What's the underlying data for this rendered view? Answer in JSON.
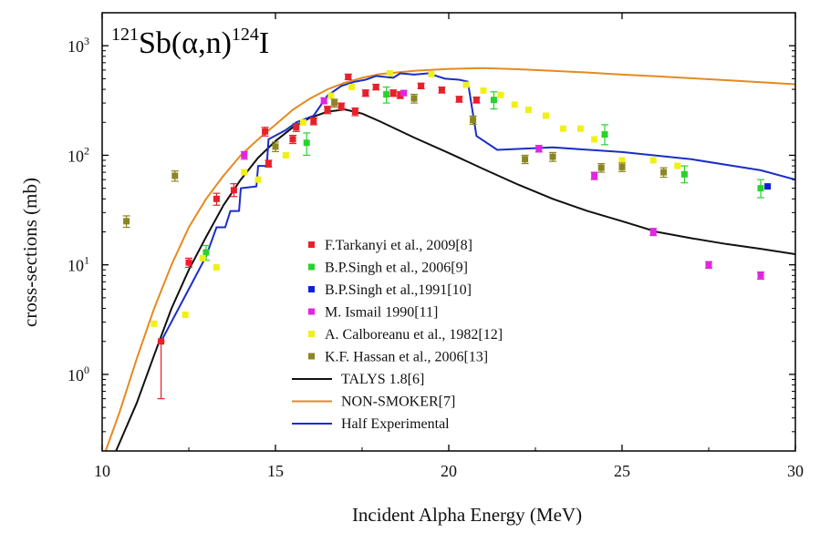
{
  "chart_data": {
    "type": "scatter",
    "title": {
      "reaction_prefix_mass": "121",
      "reaction_target": "Sb(",
      "reaction_alpha": "α",
      "reaction_middle": ",n)",
      "reaction_product_mass": "124",
      "reaction_product": "I"
    },
    "xlabel": "Incident Alpha Energy (MeV)",
    "ylabel": "cross-sections (mb)",
    "xlim": [
      10,
      30
    ],
    "ylim": [
      0.2,
      2000
    ],
    "y_scale": "log",
    "x_ticks": [
      10,
      15,
      20,
      25,
      30
    ],
    "x_tick_labels": [
      "10",
      "15",
      "20",
      "25",
      "30"
    ],
    "y_ticks": [
      {
        "value": 1,
        "base": "10",
        "exp": "0"
      },
      {
        "value": 10,
        "base": "10",
        "exp": "1"
      },
      {
        "value": 100,
        "base": "10",
        "exp": "2"
      },
      {
        "value": 1000,
        "base": "10",
        "exp": "3"
      }
    ],
    "legend_position": "center",
    "series": [
      {
        "name": "F.Tarkanyi et al., 2009[8]",
        "kind": "points",
        "color": "#e8202a",
        "marker": "square",
        "points": [
          {
            "x": 11.7,
            "y": 2.0,
            "lo": 0.6,
            "hi": 2.0
          },
          {
            "x": 12.5,
            "y": 10.5,
            "lo": 9.5,
            "hi": 11.5
          },
          {
            "x": 13.3,
            "y": 40,
            "lo": 35,
            "hi": 45
          },
          {
            "x": 13.8,
            "y": 48,
            "lo": 42,
            "hi": 55
          },
          {
            "x": 14.7,
            "y": 165,
            "lo": 150,
            "hi": 180
          },
          {
            "x": 14.8,
            "y": 84,
            "lo": 78,
            "hi": 90
          },
          {
            "x": 15.5,
            "y": 140,
            "lo": 128,
            "hi": 152
          },
          {
            "x": 15.6,
            "y": 180,
            "lo": 165,
            "hi": 195
          },
          {
            "x": 16.1,
            "y": 205,
            "lo": 190,
            "hi": 220
          },
          {
            "x": 16.5,
            "y": 260,
            "lo": 240,
            "hi": 280
          },
          {
            "x": 16.9,
            "y": 280,
            "lo": 260,
            "hi": 300
          },
          {
            "x": 17.1,
            "y": 520,
            "lo": 490,
            "hi": 550
          },
          {
            "x": 17.3,
            "y": 250,
            "lo": 230,
            "hi": 270
          },
          {
            "x": 17.6,
            "y": 370,
            "lo": 345,
            "hi": 395
          },
          {
            "x": 17.9,
            "y": 420,
            "lo": 395,
            "hi": 445
          },
          {
            "x": 18.4,
            "y": 370,
            "lo": 345,
            "hi": 395
          },
          {
            "x": 18.6,
            "y": 355,
            "lo": 330,
            "hi": 380
          },
          {
            "x": 19.2,
            "y": 430,
            "lo": 405,
            "hi": 455
          },
          {
            "x": 19.8,
            "y": 395,
            "lo": 370,
            "hi": 420
          },
          {
            "x": 20.3,
            "y": 325,
            "lo": 305,
            "hi": 345
          },
          {
            "x": 20.8,
            "y": 320,
            "lo": 300,
            "hi": 340
          }
        ]
      },
      {
        "name": "B.P.Singh et al., 2006[9]",
        "kind": "points",
        "color": "#2ad12e",
        "marker": "square",
        "points": [
          {
            "x": 13.0,
            "y": 13,
            "lo": 11,
            "hi": 15
          },
          {
            "x": 15.9,
            "y": 130,
            "lo": 100,
            "hi": 160
          },
          {
            "x": 18.2,
            "y": 360,
            "lo": 300,
            "hi": 420
          },
          {
            "x": 21.3,
            "y": 320,
            "lo": 265,
            "hi": 380
          },
          {
            "x": 24.5,
            "y": 155,
            "lo": 125,
            "hi": 190
          },
          {
            "x": 26.8,
            "y": 67,
            "lo": 56,
            "hi": 80
          },
          {
            "x": 29.0,
            "y": 50,
            "lo": 41,
            "hi": 60
          }
        ]
      },
      {
        "name": "B.P.Singh et al.,1991[10]",
        "kind": "points",
        "color": "#1020d8",
        "marker": "square",
        "points": [
          {
            "x": 29.2,
            "y": 52
          }
        ]
      },
      {
        "name": "M. Ismail 1990[11]",
        "kind": "points",
        "color": "#e026e0",
        "marker": "square",
        "points": [
          {
            "x": 14.1,
            "y": 100,
            "lo": 92,
            "hi": 108
          },
          {
            "x": 16.4,
            "y": 315,
            "lo": 295,
            "hi": 335
          },
          {
            "x": 18.7,
            "y": 370,
            "lo": 350,
            "hi": 390
          },
          {
            "x": 22.6,
            "y": 115,
            "lo": 107,
            "hi": 123
          },
          {
            "x": 24.2,
            "y": 65,
            "lo": 60,
            "hi": 70
          },
          {
            "x": 25.9,
            "y": 20,
            "lo": 18.5,
            "hi": 21.5
          },
          {
            "x": 27.5,
            "y": 10,
            "lo": 9.3,
            "hi": 10.7
          },
          {
            "x": 29.0,
            "y": 8,
            "lo": 7.4,
            "hi": 8.6
          }
        ]
      },
      {
        "name": "A. Calboreanu et al., 1982[12]",
        "kind": "points",
        "color": "#f0f018",
        "marker": "square",
        "points": [
          {
            "x": 11.5,
            "y": 2.9
          },
          {
            "x": 12.4,
            "y": 3.5
          },
          {
            "x": 12.9,
            "y": 11.5
          },
          {
            "x": 13.3,
            "y": 9.5
          },
          {
            "x": 14.1,
            "y": 70
          },
          {
            "x": 14.5,
            "y": 60
          },
          {
            "x": 15.3,
            "y": 100
          },
          {
            "x": 15.8,
            "y": 200
          },
          {
            "x": 16.6,
            "y": 350
          },
          {
            "x": 17.2,
            "y": 420
          },
          {
            "x": 18.3,
            "y": 560
          },
          {
            "x": 19.5,
            "y": 550
          },
          {
            "x": 20.5,
            "y": 440
          },
          {
            "x": 21.0,
            "y": 390
          },
          {
            "x": 21.5,
            "y": 355
          },
          {
            "x": 21.9,
            "y": 290
          },
          {
            "x": 22.3,
            "y": 260
          },
          {
            "x": 22.8,
            "y": 230
          },
          {
            "x": 23.3,
            "y": 175
          },
          {
            "x": 23.8,
            "y": 175
          },
          {
            "x": 24.2,
            "y": 140
          },
          {
            "x": 25.0,
            "y": 90
          },
          {
            "x": 25.9,
            "y": 90
          },
          {
            "x": 26.6,
            "y": 80
          }
        ]
      },
      {
        "name": "K.F. Hassan et al., 2006[13]",
        "kind": "points",
        "color": "#8b8624",
        "marker": "square",
        "points": [
          {
            "x": 10.7,
            "y": 25,
            "lo": 22,
            "hi": 28
          },
          {
            "x": 12.1,
            "y": 65,
            "lo": 58,
            "hi": 72
          },
          {
            "x": 15.0,
            "y": 120,
            "lo": 108,
            "hi": 132
          },
          {
            "x": 16.7,
            "y": 300,
            "lo": 275,
            "hi": 325
          },
          {
            "x": 19.0,
            "y": 330,
            "lo": 300,
            "hi": 360
          },
          {
            "x": 20.7,
            "y": 210,
            "lo": 192,
            "hi": 228
          },
          {
            "x": 22.2,
            "y": 92,
            "lo": 84,
            "hi": 100
          },
          {
            "x": 23.0,
            "y": 97,
            "lo": 88,
            "hi": 106
          },
          {
            "x": 24.4,
            "y": 77,
            "lo": 70,
            "hi": 84
          },
          {
            "x": 25.0,
            "y": 78,
            "lo": 71,
            "hi": 85
          },
          {
            "x": 26.2,
            "y": 70,
            "lo": 63,
            "hi": 77
          }
        ]
      },
      {
        "name": "TALYS 1.8[6]",
        "kind": "line",
        "color": "#111111",
        "points": [
          {
            "x": 10.4,
            "y": 0.2
          },
          {
            "x": 11,
            "y": 0.55
          },
          {
            "x": 11.5,
            "y": 1.5
          },
          {
            "x": 12,
            "y": 4
          },
          {
            "x": 12.5,
            "y": 9
          },
          {
            "x": 13,
            "y": 18
          },
          {
            "x": 13.5,
            "y": 35
          },
          {
            "x": 14,
            "y": 60
          },
          {
            "x": 14.5,
            "y": 95
          },
          {
            "x": 15,
            "y": 135
          },
          {
            "x": 15.5,
            "y": 180
          },
          {
            "x": 16,
            "y": 220
          },
          {
            "x": 16.5,
            "y": 250
          },
          {
            "x": 17,
            "y": 262
          },
          {
            "x": 17.5,
            "y": 240
          },
          {
            "x": 18,
            "y": 205
          },
          {
            "x": 19,
            "y": 145
          },
          {
            "x": 20,
            "y": 105
          },
          {
            "x": 21,
            "y": 75
          },
          {
            "x": 22,
            "y": 54
          },
          {
            "x": 23,
            "y": 40
          },
          {
            "x": 24,
            "y": 31
          },
          {
            "x": 25,
            "y": 25
          },
          {
            "x": 26,
            "y": 20
          },
          {
            "x": 27,
            "y": 17.5
          },
          {
            "x": 28,
            "y": 15.5
          },
          {
            "x": 29,
            "y": 14
          },
          {
            "x": 30,
            "y": 12.5
          }
        ]
      },
      {
        "name": "NON-SMOKER[7]",
        "kind": "line",
        "color": "#e58a1f",
        "points": [
          {
            "x": 10.1,
            "y": 0.2
          },
          {
            "x": 10.5,
            "y": 0.45
          },
          {
            "x": 11,
            "y": 1.4
          },
          {
            "x": 11.5,
            "y": 4
          },
          {
            "x": 12,
            "y": 10
          },
          {
            "x": 12.5,
            "y": 22
          },
          {
            "x": 13,
            "y": 40
          },
          {
            "x": 13.5,
            "y": 65
          },
          {
            "x": 14,
            "y": 100
          },
          {
            "x": 14.5,
            "y": 140
          },
          {
            "x": 15,
            "y": 190
          },
          {
            "x": 15.5,
            "y": 260
          },
          {
            "x": 16,
            "y": 330
          },
          {
            "x": 16.5,
            "y": 400
          },
          {
            "x": 17,
            "y": 460
          },
          {
            "x": 17.5,
            "y": 510
          },
          {
            "x": 18,
            "y": 550
          },
          {
            "x": 19,
            "y": 590
          },
          {
            "x": 20,
            "y": 615
          },
          {
            "x": 21,
            "y": 625
          },
          {
            "x": 22,
            "y": 610
          },
          {
            "x": 23,
            "y": 590
          },
          {
            "x": 24,
            "y": 570
          },
          {
            "x": 25,
            "y": 545
          },
          {
            "x": 26,
            "y": 525
          },
          {
            "x": 27,
            "y": 505
          },
          {
            "x": 28,
            "y": 485
          },
          {
            "x": 29,
            "y": 465
          },
          {
            "x": 30,
            "y": 445
          }
        ]
      },
      {
        "name": "Half Experimental",
        "kind": "line",
        "color": "#1a2ec8",
        "points": [
          {
            "x": 11.7,
            "y": 2.0
          },
          {
            "x": 12.5,
            "y": 6
          },
          {
            "x": 13.0,
            "y": 12
          },
          {
            "x": 13.3,
            "y": 22
          },
          {
            "x": 13.55,
            "y": 22
          },
          {
            "x": 13.7,
            "y": 31
          },
          {
            "x": 13.95,
            "y": 31
          },
          {
            "x": 14.0,
            "y": 50
          },
          {
            "x": 14.45,
            "y": 52
          },
          {
            "x": 14.5,
            "y": 80
          },
          {
            "x": 14.75,
            "y": 80
          },
          {
            "x": 14.8,
            "y": 140
          },
          {
            "x": 15.3,
            "y": 170
          },
          {
            "x": 15.6,
            "y": 200
          },
          {
            "x": 16.1,
            "y": 230
          },
          {
            "x": 16.5,
            "y": 350
          },
          {
            "x": 16.9,
            "y": 430
          },
          {
            "x": 17.3,
            "y": 470
          },
          {
            "x": 17.6,
            "y": 490
          },
          {
            "x": 17.9,
            "y": 530
          },
          {
            "x": 18.4,
            "y": 510
          },
          {
            "x": 18.6,
            "y": 560
          },
          {
            "x": 19.0,
            "y": 545
          },
          {
            "x": 19.4,
            "y": 560
          },
          {
            "x": 19.9,
            "y": 500
          },
          {
            "x": 20.3,
            "y": 490
          },
          {
            "x": 20.55,
            "y": 470
          },
          {
            "x": 20.8,
            "y": 150
          },
          {
            "x": 21.4,
            "y": 112
          },
          {
            "x": 23.0,
            "y": 118
          },
          {
            "x": 25.0,
            "y": 107
          },
          {
            "x": 27.0,
            "y": 92
          },
          {
            "x": 29.0,
            "y": 73
          },
          {
            "x": 30.0,
            "y": 60
          }
        ]
      }
    ]
  }
}
